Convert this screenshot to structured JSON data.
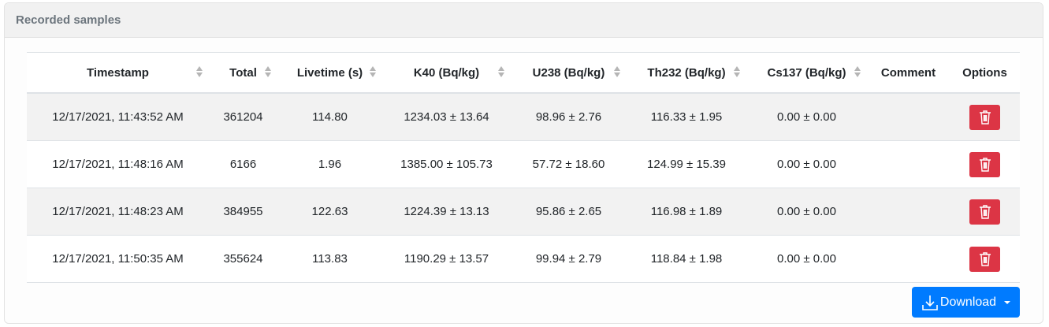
{
  "card": {
    "title": "Recorded samples"
  },
  "table": {
    "columns": [
      {
        "label": "Timestamp",
        "sortable": true
      },
      {
        "label": "Total",
        "sortable": true
      },
      {
        "label": "Livetime (s)",
        "sortable": true
      },
      {
        "label": "K40 (Bq/kg)",
        "sortable": true
      },
      {
        "label": "U238 (Bq/kg)",
        "sortable": true
      },
      {
        "label": "Th232 (Bq/kg)",
        "sortable": true
      },
      {
        "label": "Cs137 (Bq/kg)",
        "sortable": true
      },
      {
        "label": "Comment",
        "sortable": false
      },
      {
        "label": "Options",
        "sortable": false
      }
    ],
    "rows": [
      [
        "12/17/2021, 11:43:52 AM",
        "361204",
        "114.80",
        "1234.03 ± 13.64",
        "98.96 ± 2.76",
        "116.33 ± 1.95",
        "0.00 ± 0.00",
        ""
      ],
      [
        "12/17/2021, 11:48:16 AM",
        "6166",
        "1.96",
        "1385.00 ± 105.73",
        "57.72 ± 18.60",
        "124.99 ± 15.39",
        "0.00 ± 0.00",
        ""
      ],
      [
        "12/17/2021, 11:48:23 AM",
        "384955",
        "122.63",
        "1224.39 ± 13.13",
        "95.86 ± 2.65",
        "116.98 ± 1.89",
        "0.00 ± 0.00",
        ""
      ],
      [
        "12/17/2021, 11:50:35 AM",
        "355624",
        "113.83",
        "1190.29 ± 13.57",
        "99.94 ± 2.79",
        "118.84 ± 1.98",
        "0.00 ± 0.00",
        ""
      ]
    ],
    "row_action_icon": "trash-icon"
  },
  "download": {
    "label": "Download",
    "icon": "download-icon"
  },
  "colors": {
    "danger": "#dc3545",
    "primary": "#007bff",
    "stripe": "#f2f2f2"
  }
}
